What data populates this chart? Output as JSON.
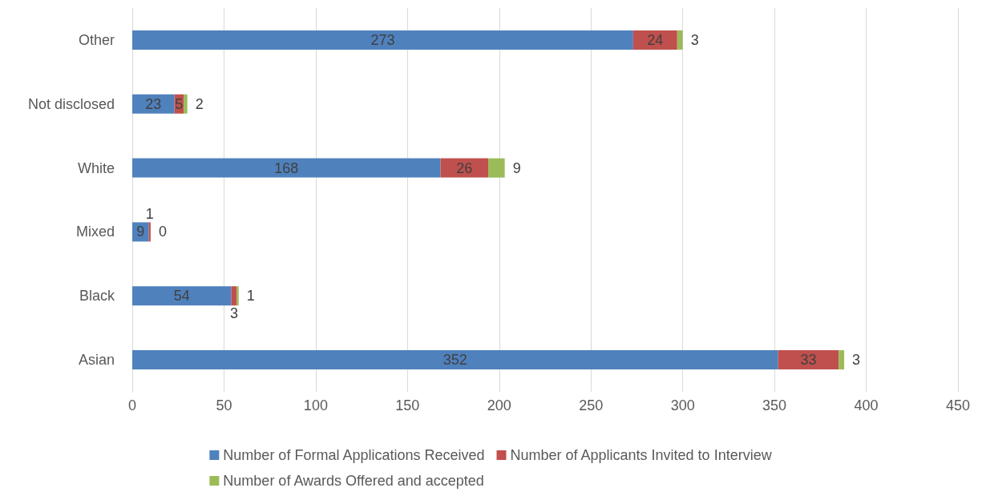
{
  "chart_data": {
    "type": "bar",
    "orientation": "horizontal",
    "stacked": true,
    "categories": [
      "Other",
      "Not disclosed",
      "White",
      "Mixed",
      "Black",
      "Asian"
    ],
    "series": [
      {
        "name": "Number of Formal Applications Received",
        "color": "#4f81bd",
        "values": [
          273,
          23,
          168,
          9,
          54,
          352
        ]
      },
      {
        "name": "Number of Applicants Invited to Interview",
        "color": "#c0504d",
        "values": [
          24,
          5,
          26,
          1,
          3,
          33
        ]
      },
      {
        "name": "Number of Awards Offered and accepted",
        "color": "#9bbb59",
        "values": [
          3,
          2,
          9,
          0,
          1,
          3
        ]
      }
    ],
    "xlim": [
      0,
      450
    ],
    "xticks": [
      0,
      50,
      100,
      150,
      200,
      250,
      300,
      350,
      400,
      450
    ],
    "grid": "x",
    "legend": "bottom",
    "data_labels": true
  }
}
